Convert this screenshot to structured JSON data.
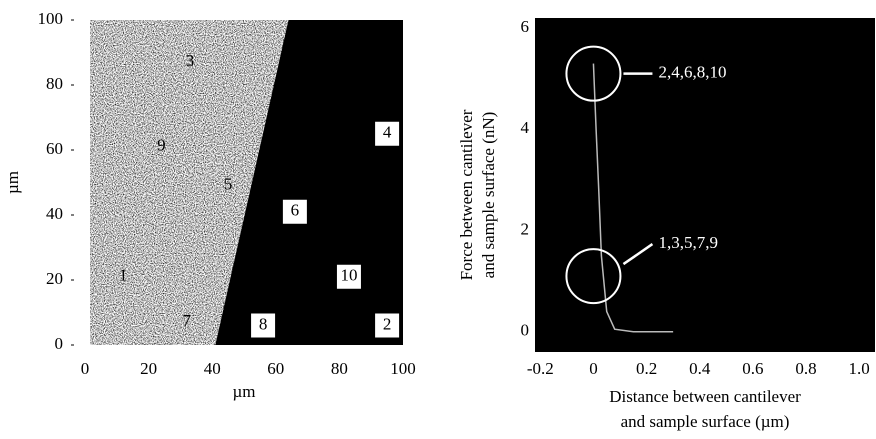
{
  "chart_data": [
    {
      "type": "map",
      "xlabel": "µm",
      "ylabel": "µm",
      "xlim": [
        0,
        100
      ],
      "ylim": [
        0,
        100
      ],
      "xticks": [
        0,
        20,
        40,
        60,
        80,
        100
      ],
      "yticks": [
        0,
        20,
        40,
        60,
        80,
        100
      ],
      "boundary": {
        "x": [
          41,
          64
        ],
        "y": [
          0,
          100
        ]
      },
      "points": {
        "labels": [
          "1",
          "2",
          "3",
          "4",
          "5",
          "6",
          "7",
          "8",
          "9",
          "10"
        ],
        "x": [
          12,
          95,
          33,
          95,
          45,
          66,
          32,
          56,
          24,
          83
        ],
        "y": [
          21,
          6,
          87,
          65,
          49,
          41,
          7,
          6,
          61,
          21
        ]
      }
    },
    {
      "type": "line",
      "xlabel": [
        "Distance between cantilever",
        "and sample surface (µm)"
      ],
      "ylabel": [
        "Force between cantilever",
        "and sample surface (nN)"
      ],
      "xlim": [
        -0.22,
        1.06
      ],
      "ylim": [
        -0.4,
        6.2
      ],
      "xticks": [
        -0.2,
        0,
        0.2,
        0.4,
        0.6,
        0.8,
        {
          "value": 1.0,
          "label": "1.0"
        }
      ],
      "yticks": [
        0,
        2,
        4,
        6
      ],
      "x": [
        0,
        0.01,
        0.02,
        0.03,
        0.05,
        0.08,
        0.15,
        0.3
      ],
      "values": [
        5.3,
        4,
        2.8,
        1.5,
        0.4,
        0.05,
        0,
        0
      ],
      "annotations": [
        {
          "text": "2,4,6,8,10",
          "x": 0,
          "y": 5.1
        },
        {
          "text": "1,3,5,7,9",
          "x": 0,
          "y": 1.1
        }
      ]
    }
  ]
}
